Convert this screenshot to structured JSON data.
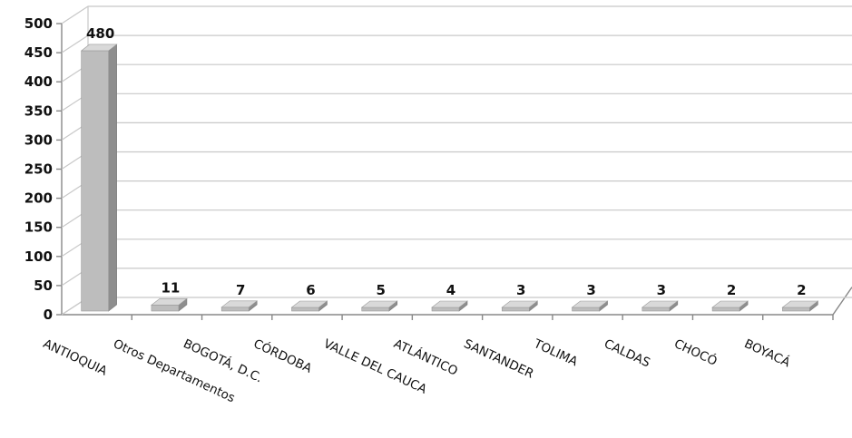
{
  "chart_data": {
    "type": "bar",
    "title": "",
    "xlabel": "",
    "ylabel": "",
    "ylim": [
      0,
      500
    ],
    "yticks": [
      0,
      50,
      100,
      150,
      200,
      250,
      300,
      350,
      400,
      450,
      500
    ],
    "grid": true,
    "three_d": true,
    "bar_color": "#bdbdbd",
    "categories": [
      "ANTIOQUIA",
      "Otros Departamentos",
      "BOGOTÁ, D.C.",
      "CÓRDOBA",
      "VALLE DEL CAUCA",
      "ATLÁNTICO",
      "SANTANDER",
      "TOLIMA",
      "CALDAS",
      "CHOCÓ",
      "BOYACÁ"
    ],
    "values": [
      480,
      11,
      7,
      6,
      5,
      4,
      3,
      3,
      3,
      2,
      2
    ],
    "data_labels": [
      "480",
      "11",
      "7",
      "6",
      "5",
      "4",
      "3",
      "3",
      "3",
      "2",
      "2"
    ]
  }
}
